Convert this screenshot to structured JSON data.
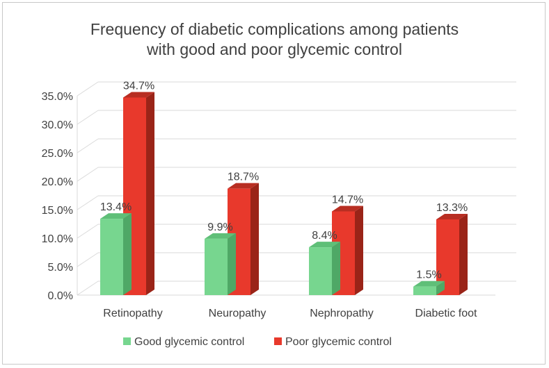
{
  "chart_data": {
    "type": "bar",
    "title_lines": [
      "Frequency of diabetic complications among patients",
      "with good and poor glycemic control"
    ],
    "categories": [
      "Retinopathy",
      "Neuropathy",
      "Nephropathy",
      "Diabetic foot"
    ],
    "series": [
      {
        "name": "Good glycemic control",
        "values": [
          13.4,
          9.9,
          8.4,
          1.5
        ],
        "labels": [
          "13.4%",
          "9.9%",
          "8.4%",
          "1.5%"
        ],
        "color": "#77d68f",
        "side_color": "#4fa866",
        "top_color": "#5fbf78"
      },
      {
        "name": "Poor glycemic control",
        "values": [
          34.7,
          18.7,
          14.7,
          13.3
        ],
        "labels": [
          "34.7%",
          "18.7%",
          "14.7%",
          "13.3%"
        ],
        "color": "#e8392c",
        "side_color": "#9a2418",
        "top_color": "#b82e22"
      }
    ],
    "yticks": [
      "0.0%",
      "5.0%",
      "10.0%",
      "15.0%",
      "20.0%",
      "25.0%",
      "30.0%",
      "35.0%"
    ],
    "ylim": [
      0,
      35
    ],
    "xlabel": "",
    "ylabel": "",
    "grid": true,
    "legend_position": "bottom",
    "style": "3d-clustered-column"
  }
}
